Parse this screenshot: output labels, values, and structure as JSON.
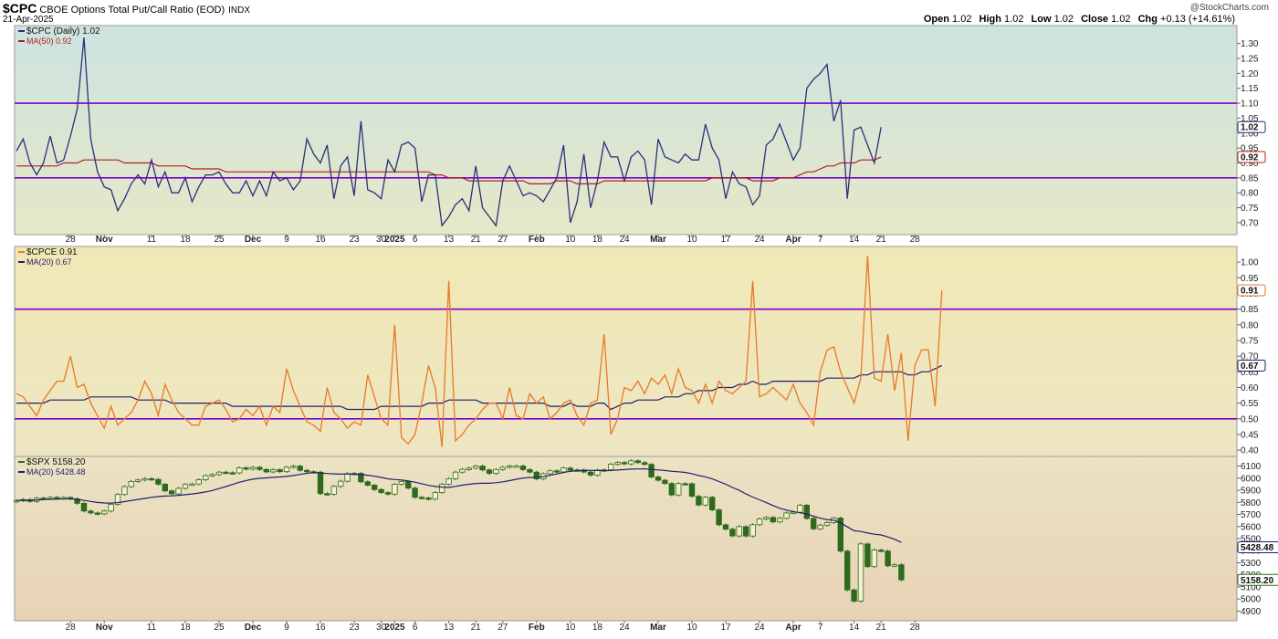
{
  "header": {
    "symbol": "$CPC",
    "title": "CBOE Options Total Put/Call Ratio (EOD)",
    "exchange": "INDX",
    "date": "21-Apr-2025",
    "copyright": "@StockCharts.com",
    "open_label": "Open",
    "open": "1.02",
    "high_label": "High",
    "high": "1.02",
    "low_label": "Low",
    "low": "1.02",
    "close_label": "Close",
    "close": "1.02",
    "chg_label": "Chg",
    "chg": "+0.13 (+14.61%)"
  },
  "x_axis": {
    "ticks": [
      {
        "i": 8,
        "label": "28",
        "bold": false
      },
      {
        "i": 13,
        "label": "Nov",
        "bold": true
      },
      {
        "i": 20,
        "label": "11",
        "bold": false
      },
      {
        "i": 25,
        "label": "18",
        "bold": false
      },
      {
        "i": 30,
        "label": "25",
        "bold": false
      },
      {
        "i": 35,
        "label": "Dec",
        "bold": true
      },
      {
        "i": 40,
        "label": "9",
        "bold": false
      },
      {
        "i": 45,
        "label": "16",
        "bold": false
      },
      {
        "i": 50,
        "label": "23",
        "bold": false
      },
      {
        "i": 54,
        "label": "30",
        "bold": false
      },
      {
        "i": 56,
        "label": "2025",
        "bold": true
      },
      {
        "i": 59,
        "label": "6",
        "bold": false
      },
      {
        "i": 64,
        "label": "13",
        "bold": false
      },
      {
        "i": 68,
        "label": "21",
        "bold": false
      },
      {
        "i": 72,
        "label": "27",
        "bold": false
      },
      {
        "i": 77,
        "label": "Feb",
        "bold": true
      },
      {
        "i": 82,
        "label": "10",
        "bold": false
      },
      {
        "i": 86,
        "label": "18",
        "bold": false
      },
      {
        "i": 90,
        "label": "24",
        "bold": false
      },
      {
        "i": 95,
        "label": "Mar",
        "bold": true
      },
      {
        "i": 100,
        "label": "10",
        "bold": false
      },
      {
        "i": 105,
        "label": "17",
        "bold": false
      },
      {
        "i": 110,
        "label": "24",
        "bold": false
      },
      {
        "i": 115,
        "label": "Apr",
        "bold": true
      },
      {
        "i": 119,
        "label": "7",
        "bold": false
      },
      {
        "i": 124,
        "label": "14",
        "bold": false
      },
      {
        "i": 128,
        "label": "21",
        "bold": false
      },
      {
        "i": 133,
        "label": "28",
        "bold": false
      }
    ]
  },
  "chart_data": [
    {
      "type": "line",
      "legend": [
        "$CPC (Daily) 1.02",
        "MA(50) 0.92"
      ],
      "ylim": [
        0.66,
        1.36
      ],
      "yticks": [
        "0.70",
        "0.75",
        "0.80",
        "0.85",
        "0.90",
        "0.95",
        "1.00",
        "1.05",
        "1.10",
        "1.15",
        "1.20",
        "1.25",
        "1.30"
      ],
      "hlines": [
        1.1,
        0.85
      ],
      "last_labels": [
        "1.02",
        "0.92"
      ],
      "colors": {
        "series": "#2b2f7a",
        "ma": "#b02020",
        "hline": "#7a00c8",
        "bg_top": "#cde3e0",
        "bg_bottom": "#e6e8c8"
      },
      "series": [
        {
          "name": "$CPC (Daily)",
          "values": [
            0.94,
            0.98,
            0.9,
            0.86,
            0.9,
            0.99,
            0.9,
            0.91,
            0.99,
            1.08,
            1.32,
            0.98,
            0.87,
            0.82,
            0.81,
            0.74,
            0.78,
            0.83,
            0.86,
            0.83,
            0.91,
            0.82,
            0.87,
            0.8,
            0.8,
            0.85,
            0.77,
            0.82,
            0.86,
            0.86,
            0.87,
            0.83,
            0.8,
            0.8,
            0.84,
            0.79,
            0.84,
            0.79,
            0.87,
            0.84,
            0.85,
            0.81,
            0.84,
            0.98,
            0.93,
            0.9,
            0.96,
            0.78,
            0.89,
            0.92,
            0.79,
            1.04,
            0.81,
            0.8,
            0.78,
            0.91,
            0.87,
            0.96,
            0.97,
            0.95,
            0.77,
            0.86,
            0.86,
            0.69,
            0.72,
            0.76,
            0.78,
            0.74,
            0.89,
            0.75,
            0.72,
            0.69,
            0.84,
            0.89,
            0.84,
            0.79,
            0.8,
            0.79,
            0.77,
            0.81,
            0.85,
            0.96,
            0.7,
            0.77,
            0.93,
            0.75,
            0.84,
            0.97,
            0.92,
            0.92,
            0.84,
            0.92,
            0.94,
            0.91,
            0.76,
            0.98,
            0.92,
            0.91,
            0.9,
            0.93,
            0.91,
            0.91,
            1.03,
            0.95,
            0.91,
            0.78,
            0.87,
            0.83,
            0.82,
            0.76,
            0.79,
            0.96,
            0.98,
            1.03,
            0.97,
            0.91,
            0.95,
            1.15,
            1.18,
            1.2,
            1.23,
            1.04,
            1.11,
            0.78,
            1.01,
            1.02,
            0.96,
            0.9,
            1.02
          ]
        },
        {
          "name": "MA(50)",
          "values": [
            0.89,
            0.89,
            0.89,
            0.89,
            0.89,
            0.89,
            0.89,
            0.9,
            0.9,
            0.9,
            0.91,
            0.91,
            0.91,
            0.91,
            0.91,
            0.91,
            0.9,
            0.9,
            0.9,
            0.9,
            0.9,
            0.89,
            0.89,
            0.89,
            0.89,
            0.89,
            0.88,
            0.88,
            0.88,
            0.88,
            0.88,
            0.87,
            0.87,
            0.87,
            0.87,
            0.87,
            0.87,
            0.87,
            0.87,
            0.87,
            0.87,
            0.87,
            0.87,
            0.87,
            0.87,
            0.87,
            0.87,
            0.87,
            0.87,
            0.87,
            0.87,
            0.87,
            0.87,
            0.87,
            0.87,
            0.87,
            0.87,
            0.87,
            0.87,
            0.87,
            0.87,
            0.87,
            0.86,
            0.86,
            0.85,
            0.85,
            0.85,
            0.84,
            0.84,
            0.84,
            0.84,
            0.84,
            0.84,
            0.84,
            0.84,
            0.84,
            0.83,
            0.83,
            0.83,
            0.83,
            0.84,
            0.84,
            0.84,
            0.83,
            0.83,
            0.83,
            0.83,
            0.84,
            0.84,
            0.84,
            0.84,
            0.84,
            0.84,
            0.84,
            0.84,
            0.84,
            0.84,
            0.84,
            0.84,
            0.84,
            0.84,
            0.84,
            0.84,
            0.85,
            0.85,
            0.85,
            0.85,
            0.85,
            0.85,
            0.84,
            0.84,
            0.84,
            0.84,
            0.85,
            0.85,
            0.85,
            0.86,
            0.87,
            0.87,
            0.88,
            0.89,
            0.89,
            0.9,
            0.9,
            0.9,
            0.91,
            0.91,
            0.91,
            0.92
          ]
        }
      ]
    },
    {
      "type": "line",
      "legend": [
        "$CPCE 0.91",
        "MA(20) 0.67"
      ],
      "ylim": [
        0.38,
        1.05
      ],
      "yticks": [
        "0.40",
        "0.45",
        "0.50",
        "0.55",
        "0.60",
        "0.65",
        "0.70",
        "0.75",
        "0.80",
        "0.85",
        "0.90",
        "0.95",
        "1.00"
      ],
      "hlines": [
        0.85,
        0.5
      ],
      "last_labels": [
        "0.91",
        "0.67"
      ],
      "colors": {
        "series": "#e8782a",
        "ma": "#1f1f6e",
        "hline": "#7a00c8",
        "bg_top": "#f0e8b4",
        "bg_bottom": "#eee6c2"
      },
      "series": [
        {
          "name": "$CPCE",
          "values": [
            0.58,
            0.57,
            0.54,
            0.51,
            0.56,
            0.59,
            0.62,
            0.62,
            0.7,
            0.6,
            0.61,
            0.55,
            0.51,
            0.47,
            0.54,
            0.48,
            0.5,
            0.52,
            0.56,
            0.62,
            0.58,
            0.51,
            0.61,
            0.56,
            0.52,
            0.5,
            0.48,
            0.48,
            0.54,
            0.55,
            0.56,
            0.53,
            0.49,
            0.5,
            0.53,
            0.51,
            0.54,
            0.48,
            0.54,
            0.52,
            0.66,
            0.59,
            0.54,
            0.49,
            0.48,
            0.46,
            0.6,
            0.52,
            0.5,
            0.47,
            0.49,
            0.48,
            0.64,
            0.57,
            0.5,
            0.48,
            0.8,
            0.44,
            0.42,
            0.45,
            0.55,
            0.67,
            0.6,
            0.41,
            0.94,
            0.43,
            0.45,
            0.48,
            0.5,
            0.53,
            0.55,
            0.55,
            0.5,
            0.6,
            0.51,
            0.5,
            0.58,
            0.55,
            0.57,
            0.5,
            0.52,
            0.55,
            0.56,
            0.51,
            0.48,
            0.55,
            0.56,
            0.77,
            0.45,
            0.5,
            0.6,
            0.59,
            0.62,
            0.58,
            0.63,
            0.61,
            0.64,
            0.58,
            0.66,
            0.6,
            0.59,
            0.55,
            0.61,
            0.55,
            0.62,
            0.59,
            0.58,
            0.6,
            0.62,
            0.94,
            0.57,
            0.58,
            0.6,
            0.58,
            0.56,
            0.61,
            0.55,
            0.52,
            0.48,
            0.65,
            0.72,
            0.73,
            0.65,
            0.6,
            0.55,
            0.63,
            1.02,
            0.63,
            0.62,
            0.77,
            0.59,
            0.71,
            0.43,
            0.67,
            0.72,
            0.72,
            0.54,
            0.91
          ]
        },
        {
          "name": "MA(20)",
          "values": [
            0.55,
            0.55,
            0.55,
            0.55,
            0.55,
            0.56,
            0.56,
            0.56,
            0.56,
            0.56,
            0.56,
            0.57,
            0.57,
            0.57,
            0.57,
            0.57,
            0.57,
            0.57,
            0.56,
            0.56,
            0.56,
            0.56,
            0.56,
            0.55,
            0.55,
            0.55,
            0.55,
            0.55,
            0.55,
            0.55,
            0.55,
            0.55,
            0.54,
            0.54,
            0.54,
            0.54,
            0.54,
            0.54,
            0.54,
            0.54,
            0.54,
            0.54,
            0.54,
            0.54,
            0.54,
            0.54,
            0.54,
            0.54,
            0.54,
            0.53,
            0.53,
            0.53,
            0.53,
            0.53,
            0.54,
            0.54,
            0.54,
            0.54,
            0.54,
            0.54,
            0.54,
            0.55,
            0.55,
            0.55,
            0.56,
            0.56,
            0.56,
            0.56,
            0.56,
            0.55,
            0.55,
            0.55,
            0.55,
            0.55,
            0.55,
            0.55,
            0.55,
            0.55,
            0.55,
            0.54,
            0.54,
            0.54,
            0.55,
            0.54,
            0.54,
            0.54,
            0.55,
            0.55,
            0.53,
            0.54,
            0.55,
            0.55,
            0.56,
            0.56,
            0.56,
            0.56,
            0.57,
            0.57,
            0.57,
            0.58,
            0.58,
            0.59,
            0.59,
            0.59,
            0.6,
            0.6,
            0.6,
            0.61,
            0.61,
            0.62,
            0.61,
            0.61,
            0.62,
            0.62,
            0.62,
            0.62,
            0.62,
            0.62,
            0.62,
            0.62,
            0.63,
            0.63,
            0.63,
            0.63,
            0.63,
            0.64,
            0.64,
            0.65,
            0.65,
            0.65,
            0.65,
            0.65,
            0.64,
            0.64,
            0.65,
            0.65,
            0.66,
            0.67
          ]
        }
      ]
    },
    {
      "type": "candlestick",
      "legend": [
        "$SPX 5158.20",
        "MA(20) 5428.48"
      ],
      "ylim": [
        4820,
        6180
      ],
      "yticks": [
        "4900",
        "5000",
        "5100",
        "5200",
        "5300",
        "5400",
        "5500",
        "5600",
        "5700",
        "5800",
        "5900",
        "6000",
        "6100"
      ],
      "last_labels": [
        "5158.20",
        "5428.48"
      ],
      "colors": {
        "up": "#f4f0d0",
        "down": "#2e6a1c",
        "outline": "#2e6a1c",
        "ma": "#1f1f6e",
        "bg_top": "#ebe3c3",
        "bg_bottom": "#e8d2b6"
      },
      "close": [
        5815,
        5823,
        5808,
        5835,
        5832,
        5841,
        5833,
        5840,
        5829,
        5792,
        5728,
        5712,
        5705,
        5728,
        5783,
        5865,
        5930,
        5973,
        5985,
        5996,
        5990,
        5950,
        5895,
        5870,
        5916,
        5948,
        5952,
        5987,
        6021,
        6030,
        6050,
        6045,
        6044,
        6086,
        6075,
        6090,
        6072,
        6052,
        6070,
        6054,
        6090,
        6100,
        6065,
        6054,
        6050,
        5872,
        5867,
        5932,
        5975,
        6038,
        6040,
        5970,
        5942,
        5906,
        5881,
        5868,
        5950,
        5973,
        5918,
        5842,
        5836,
        5827,
        5881,
        5949,
        5996,
        6050,
        6073,
        6083,
        6100,
        6068,
        6039,
        6072,
        6090,
        6101,
        6101,
        6071,
        6050,
        5994,
        6037,
        6061,
        6052,
        6084,
        6066,
        6068,
        6051,
        6025,
        6066,
        6069,
        6115,
        6130,
        6118,
        6144,
        6129,
        6114,
        6010,
        5983,
        5956,
        5861,
        5955,
        5954,
        5850,
        5778,
        5842,
        5738,
        5614,
        5578,
        5522,
        5599,
        5521,
        5615,
        5663,
        5675,
        5638,
        5668,
        5712,
        5718,
        5776,
        5667,
        5581,
        5611,
        5633,
        5670,
        5396,
        5075,
        4982,
        5456,
        5268,
        5405,
        5397,
        5275,
        5283,
        5158
      ]
    }
  ]
}
